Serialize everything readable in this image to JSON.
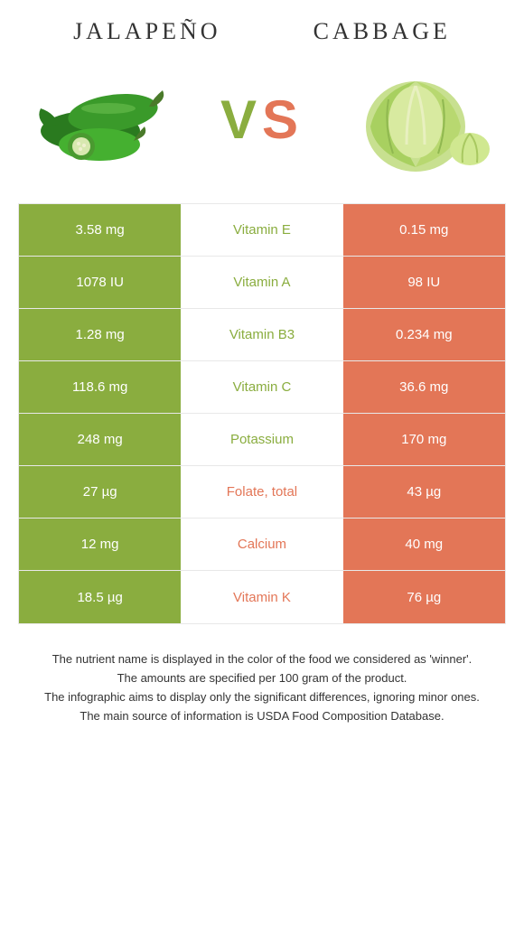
{
  "colors": {
    "left_bg": "#8aad3f",
    "right_bg": "#e37657",
    "mid_bg": "#ffffff",
    "cell_text": "#ffffff",
    "winner_left": "#8aad3f",
    "winner_right": "#e37657"
  },
  "header": {
    "left_title": "Jalapeño",
    "right_title": "Cabbage"
  },
  "vs": {
    "v": "V",
    "s": "S"
  },
  "rows": [
    {
      "left": "3.58 mg",
      "mid": "Vitamin E",
      "right": "0.15 mg",
      "winner": "left"
    },
    {
      "left": "1078 IU",
      "mid": "Vitamin A",
      "right": "98 IU",
      "winner": "left"
    },
    {
      "left": "1.28 mg",
      "mid": "Vitamin B3",
      "right": "0.234 mg",
      "winner": "left"
    },
    {
      "left": "118.6 mg",
      "mid": "Vitamin C",
      "right": "36.6 mg",
      "winner": "left"
    },
    {
      "left": "248 mg",
      "mid": "Potassium",
      "right": "170 mg",
      "winner": "left"
    },
    {
      "left": "27 µg",
      "mid": "Folate, total",
      "right": "43 µg",
      "winner": "right"
    },
    {
      "left": "12 mg",
      "mid": "Calcium",
      "right": "40 mg",
      "winner": "right"
    },
    {
      "left": "18.5 µg",
      "mid": "Vitamin K",
      "right": "76 µg",
      "winner": "right"
    }
  ],
  "footer": {
    "line1": "The nutrient name is displayed in the color of the food we considered as 'winner'.",
    "line2": "The amounts are specified per 100 gram of the product.",
    "line3": "The infographic aims to display only the significant differences, ignoring minor ones.",
    "line4": "The main source of information is USDA Food Composition Database."
  }
}
